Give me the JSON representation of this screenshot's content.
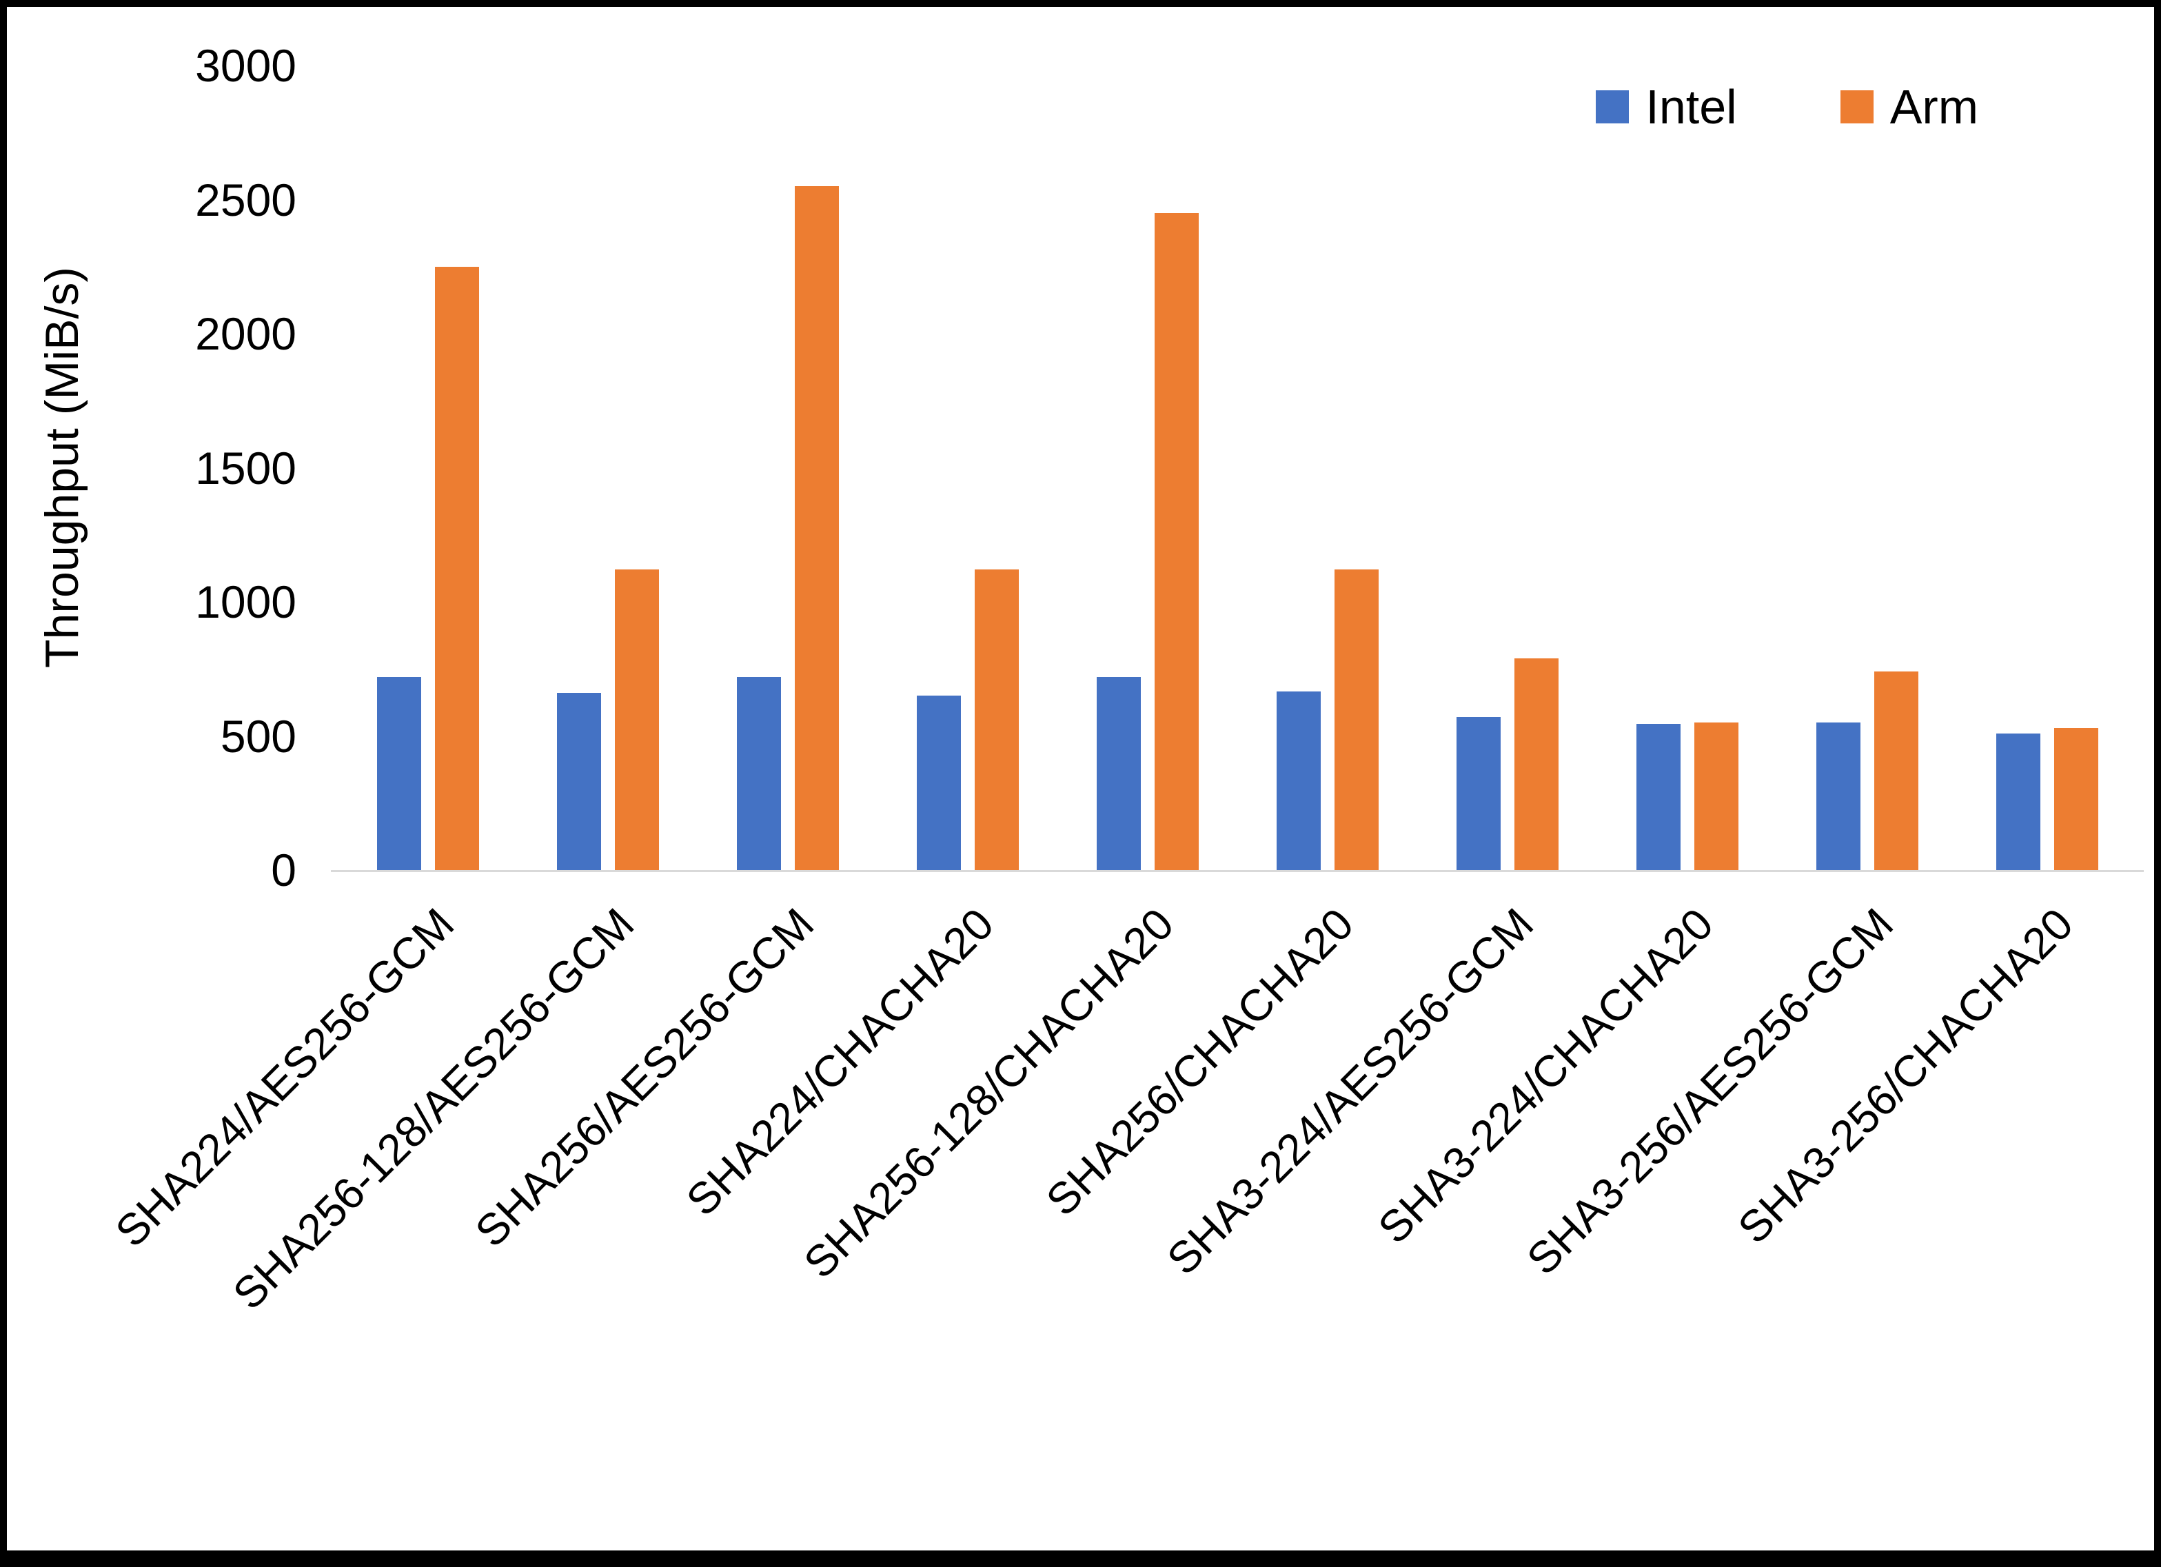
{
  "chart_data": {
    "type": "bar",
    "title": "",
    "xlabel": "",
    "ylabel": "Throughput (MiB/s)",
    "ylim": [
      0,
      3000
    ],
    "yticks": [
      0,
      500,
      1000,
      1500,
      2000,
      2500,
      3000
    ],
    "grid": false,
    "legend_position": "top-right",
    "categories": [
      "SHA224/AES256-GCM",
      "SHA256-128/AES256-GCM",
      "SHA256/AES256-GCM",
      "SHA224/CHACHA20",
      "SHA256-128/CHACHA20",
      "SHA256/CHACHA20",
      "SHA3-224/AES256-GCM",
      "SHA3-224/CHACHA20",
      "SHA3-256/AES256-GCM",
      "SHA3-256/CHACHA20"
    ],
    "series": [
      {
        "name": "Intel",
        "color": "#4472C4",
        "values": [
          720,
          660,
          720,
          650,
          720,
          665,
          570,
          545,
          550,
          510
        ]
      },
      {
        "name": "Arm",
        "color": "#ED7D31",
        "values": [
          2250,
          1120,
          2550,
          1120,
          2450,
          1120,
          790,
          550,
          740,
          530
        ]
      }
    ]
  }
}
